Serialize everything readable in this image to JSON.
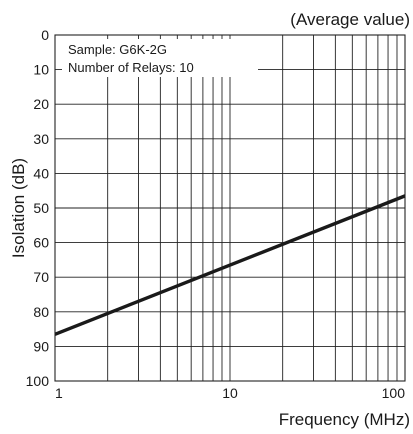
{
  "chart_data": {
    "type": "line",
    "title": "(Average value)",
    "xlabel": "Frequency (MHz)",
    "ylabel": "Isolation (dB)",
    "x_scale": "log",
    "xlim": [
      1,
      100
    ],
    "ylim": [
      0,
      100
    ],
    "y_inverted": true,
    "grid": true,
    "x_tick_labels": [
      "1",
      "10",
      "100"
    ],
    "y_tick_labels": [
      "0",
      "10",
      "20",
      "30",
      "40",
      "50",
      "60",
      "70",
      "80",
      "90",
      "100"
    ],
    "annotations": [
      "Sample: G6K-2G",
      "Number of Relays: 10"
    ],
    "series": [
      {
        "x": [
          1,
          100
        ],
        "y": [
          86.5,
          46.5
        ]
      }
    ]
  }
}
